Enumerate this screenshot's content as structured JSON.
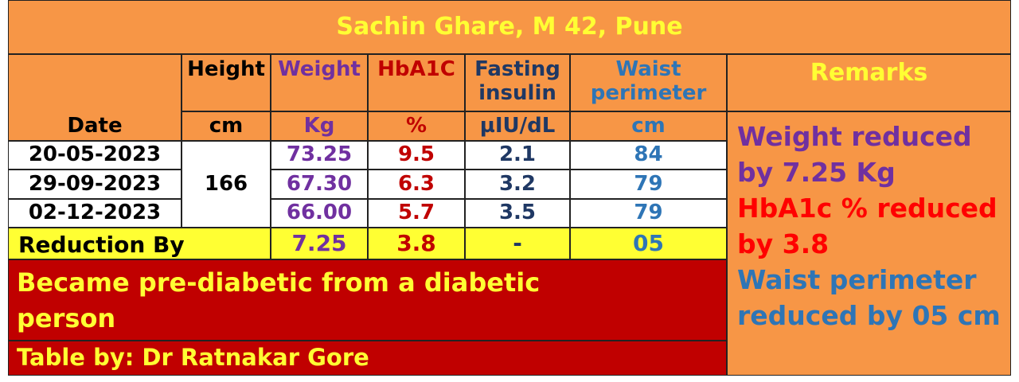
{
  "title": "Sachin Ghare, M 42, Pune",
  "table": {
    "headers": [
      "Date",
      "Height",
      "Weight",
      "HbA1C",
      "Fasting insulin",
      "Waist perimeter"
    ],
    "units": [
      "cm",
      "Kg",
      "%",
      "µIU/dL",
      "cm"
    ],
    "height": "166",
    "rows": [
      [
        "20-05-2023",
        "73.25",
        "9.5",
        "2.1",
        "84"
      ],
      [
        "29-09-2023",
        "67.30",
        "6.3",
        "3.2",
        "79"
      ],
      [
        "02-12-2023",
        "66.00",
        "5.7",
        "3.5",
        "79"
      ]
    ],
    "reduction": {
      "label": "Reduction By",
      "values": [
        "7.25",
        "3.8",
        "-",
        "05"
      ]
    }
  },
  "note": "Became pre-diabetic from a diabetic person",
  "credit": "Table by: Dr Ratnakar Gore",
  "remarks": {
    "title": "Remarks",
    "items": [
      {
        "text": "Weight reduced by 7.25 Kg",
        "color": "#7030a0"
      },
      {
        "text": "HbA1c % reduced by 3.8",
        "color": "#ff0000"
      },
      {
        "text": "Waist perimeter reduced by 05 cm",
        "color": "#2e75b6"
      }
    ]
  }
}
